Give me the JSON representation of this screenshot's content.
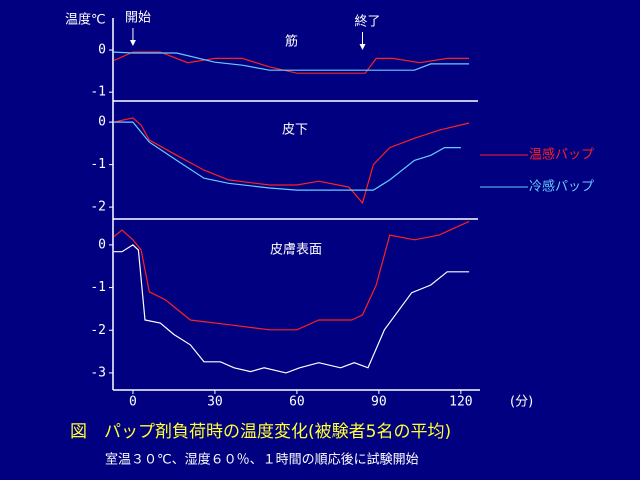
{
  "figure": {
    "y_label": "温度℃",
    "x_label": "(分)",
    "title": "図　パップ剤負荷時の温度変化(被験者5名の平均)",
    "subtitle": "室温３０℃、湿度６０％、１時間の順応後に試験開始",
    "annotations": [
      {
        "text": "開始",
        "x": 0
      },
      {
        "text": "終了",
        "x": 84
      }
    ]
  },
  "chart_data": [
    {
      "type": "line",
      "title": "筋",
      "xlim": [
        -7.3,
        127
      ],
      "ylim": [
        -1.21,
        0.76
      ],
      "yticks": [
        0,
        -1
      ],
      "series": [
        {
          "name": "温感パップ",
          "color": "#ff2020",
          "x": [
            -7,
            0,
            10,
            20,
            30,
            40,
            50,
            60,
            70,
            80,
            85,
            89,
            95,
            105,
            115,
            123
          ],
          "values": [
            -0.25,
            -0.05,
            -0.05,
            -0.3,
            -0.2,
            -0.2,
            -0.4,
            -0.55,
            -0.55,
            -0.55,
            -0.55,
            -0.2,
            -0.2,
            -0.3,
            -0.2,
            -0.2
          ]
        },
        {
          "name": "冷感パップ",
          "color": "#66ccff",
          "x": [
            -7,
            0,
            16,
            30,
            40,
            50,
            60,
            70,
            80,
            89,
            103,
            109,
            123
          ],
          "values": [
            -0.05,
            -0.07,
            -0.07,
            -0.29,
            -0.36,
            -0.48,
            -0.48,
            -0.48,
            -0.48,
            -0.48,
            -0.48,
            -0.33,
            -0.33
          ]
        }
      ]
    },
    {
      "type": "line",
      "title": "皮下",
      "xlim": [
        -7.3,
        127
      ],
      "ylim": [
        -2.28,
        0.45
      ],
      "yticks": [
        0,
        -1,
        -2
      ],
      "series": [
        {
          "name": "温感パップ",
          "color": "#ff2020",
          "x": [
            -7,
            0,
            3,
            6,
            16,
            26,
            35,
            50,
            60,
            68,
            79,
            84,
            88,
            94,
            103,
            112,
            123
          ],
          "values": [
            0,
            0.1,
            -0.07,
            -0.42,
            -0.78,
            -1.13,
            -1.36,
            -1.48,
            -1.48,
            -1.39,
            -1.53,
            -1.9,
            -1.0,
            -0.6,
            -0.38,
            -0.19,
            -0.02
          ]
        },
        {
          "name": "冷感パップ",
          "color": "#66ccff",
          "x": [
            -7,
            0,
            6,
            16,
            26,
            35,
            50,
            60,
            80,
            88,
            94,
            103,
            109,
            114,
            120
          ],
          "values": [
            0,
            0,
            -0.47,
            -0.9,
            -1.32,
            -1.44,
            -1.55,
            -1.6,
            -1.6,
            -1.6,
            -1.36,
            -0.9,
            -0.78,
            -0.6,
            -0.6
          ]
        }
      ]
    },
    {
      "type": "line",
      "title": "皮膚表面",
      "xlim": [
        -7.3,
        127
      ],
      "ylim": [
        -3.4,
        0.56
      ],
      "yticks": [
        0,
        -1,
        -2,
        -3
      ],
      "xticks": [
        0,
        30,
        60,
        90,
        120
      ],
      "series": [
        {
          "name": "温感パップ",
          "color": "#ff2020",
          "x": [
            -7,
            -4,
            0,
            3,
            6,
            12,
            21,
            35,
            50,
            60,
            68,
            80,
            84,
            89,
            94,
            103,
            112,
            123
          ],
          "values": [
            0.19,
            0.35,
            0.12,
            -0.12,
            -1.1,
            -1.29,
            -1.76,
            -1.87,
            -1.99,
            -1.99,
            -1.76,
            -1.76,
            -1.64,
            -0.94,
            0.23,
            0.12,
            0.23,
            0.55
          ]
        },
        {
          "name": "冷感パップ",
          "color": "#ffffff",
          "x": [
            -7,
            -4,
            0,
            2,
            4.4,
            10,
            15,
            21,
            26,
            32,
            37,
            43,
            48,
            56,
            61,
            68,
            76,
            81,
            86,
            92,
            102,
            109,
            115,
            123
          ],
          "values": [
            -0.16,
            -0.16,
            0,
            -0.12,
            -1.76,
            -1.83,
            -2.1,
            -2.34,
            -2.74,
            -2.74,
            -2.88,
            -2.97,
            -2.88,
            -3.0,
            -2.88,
            -2.76,
            -2.88,
            -2.76,
            -2.88,
            -1.99,
            -1.12,
            -0.94,
            -0.63,
            -0.63
          ]
        }
      ]
    }
  ]
}
